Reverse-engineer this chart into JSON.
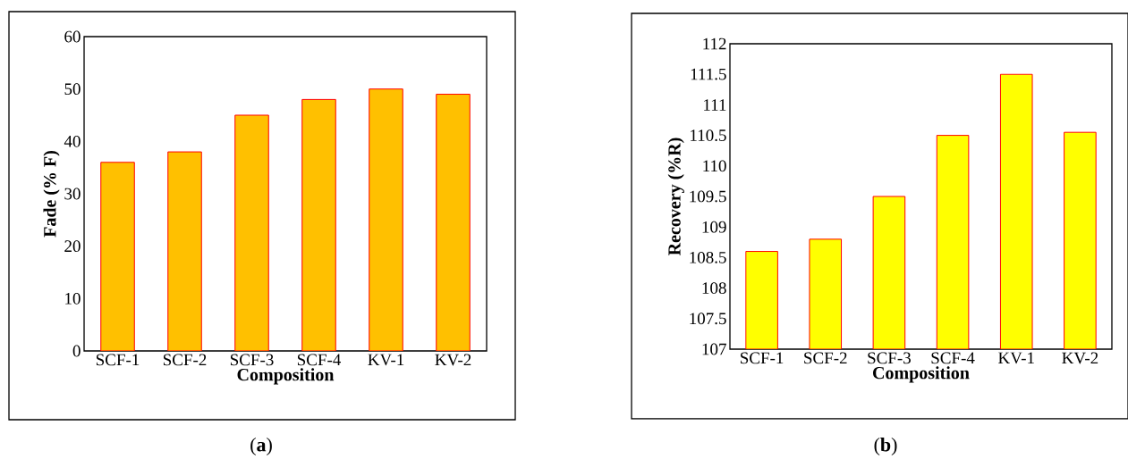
{
  "chart_data": [
    {
      "type": "bar",
      "categories": [
        "SCF-1",
        "SCF-2",
        "SCF-3",
        "SCF-4",
        "KV-1",
        "KV-2"
      ],
      "values": [
        36,
        38,
        45,
        48,
        50,
        49
      ],
      "color": "#ffc000",
      "ylim": [
        0,
        60
      ],
      "yticks": [
        0,
        10,
        20,
        30,
        40,
        50,
        60
      ],
      "xlabel": "Composition",
      "ylabel": "Fade (% F)",
      "annotations": [
        "(**a**)"
      ]
    },
    {
      "type": "bar",
      "categories": [
        "SCF-1",
        "SCF-2",
        "SCF-3",
        "SCF-4",
        "KV-1",
        "KV-2"
      ],
      "values": [
        108.6,
        108.8,
        109.5,
        110.5,
        111.5,
        110.55
      ],
      "color": "#ffff00",
      "ylim": [
        107,
        112
      ],
      "yticks": [
        107,
        107.5,
        108,
        108.5,
        109,
        109.5,
        110,
        110.5,
        111,
        111.5,
        112
      ],
      "xlabel": "Composition",
      "ylabel": "Recovery (%R)",
      "annotations": [
        "(**b**)"
      ]
    }
  ]
}
